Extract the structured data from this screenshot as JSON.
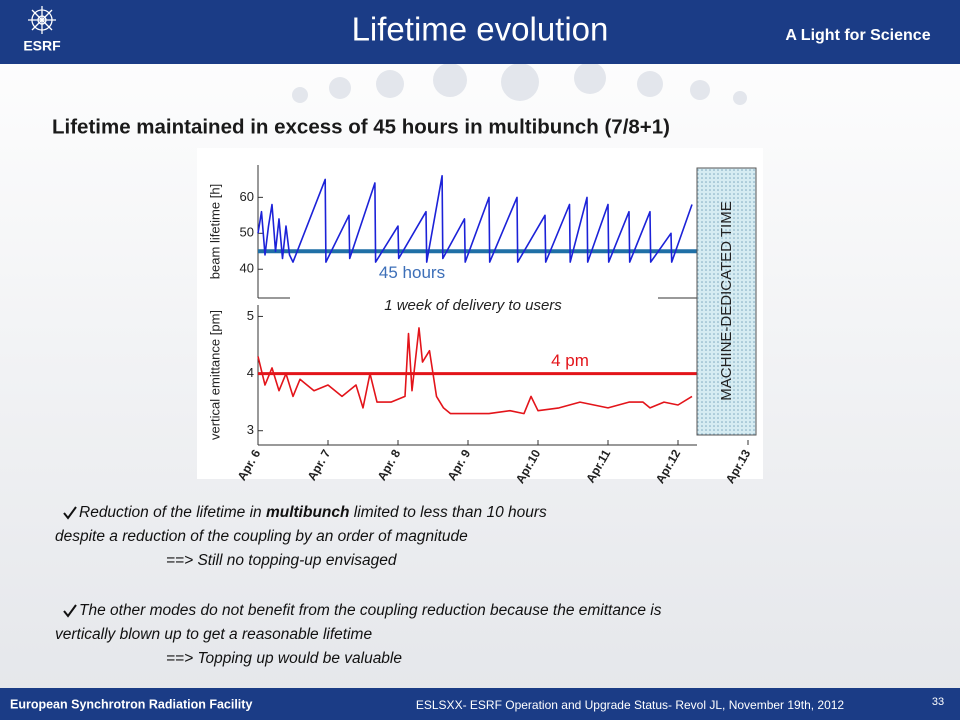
{
  "header": {
    "logo": "ESRF",
    "title": "Lifetime evolution",
    "tagline": "A Light for Science"
  },
  "subtitle": "Lifetime maintained in excess of 45 hours in multibunch (7/8+1)",
  "chart_annotations": {
    "delivery": "1 week of delivery to users",
    "machine": "MACHINE-DEDICATED TIME"
  },
  "chart_data": [
    {
      "type": "line",
      "ylabel": "beam lifetime [h]",
      "xlim": [
        6,
        13
      ],
      "ylim": [
        32,
        69
      ],
      "yticks": [
        40,
        50,
        60
      ],
      "series": [
        {
          "name": "beam lifetime",
          "color": "#1c22d8",
          "x": [
            6.0,
            6.05,
            6.1,
            6.15,
            6.2,
            6.25,
            6.3,
            6.35,
            6.4,
            6.45,
            6.5,
            6.96,
            6.97,
            7.3,
            7.31,
            7.67,
            7.68,
            8.0,
            8.01,
            8.4,
            8.41,
            8.63,
            8.64,
            8.95,
            8.96,
            9.3,
            9.31,
            9.7,
            9.71,
            10.1,
            10.11,
            10.45,
            10.46,
            10.7,
            10.71,
            11.0,
            11.01,
            11.3,
            11.31,
            11.6,
            11.61,
            11.9,
            11.91,
            12.2
          ],
          "values": [
            50,
            56,
            44,
            52,
            58,
            45,
            54,
            43,
            52,
            44,
            42,
            65,
            42,
            55,
            43,
            64,
            42,
            52,
            43,
            56,
            42,
            66,
            43,
            54,
            42,
            60,
            42,
            60,
            42,
            55,
            42,
            58,
            42,
            60,
            42,
            58,
            42,
            56,
            42,
            56,
            42,
            50,
            42,
            58
          ]
        }
      ],
      "reference_line": {
        "value": 45,
        "label": "45 hours",
        "color": "#1f6fa6",
        "label_color": "#3d6fb8"
      }
    },
    {
      "type": "line",
      "ylabel": "vertical emittance [pm]",
      "xlim": [
        6,
        13
      ],
      "ylim": [
        2.75,
        5.2
      ],
      "yticks": [
        3,
        4,
        5
      ],
      "xticks": [
        {
          "value": 6,
          "label": "Apr. 6"
        },
        {
          "value": 7,
          "label": "Apr. 7"
        },
        {
          "value": 8,
          "label": "Apr. 8"
        },
        {
          "value": 9,
          "label": "Apr. 9"
        },
        {
          "value": 10,
          "label": "Apr.10"
        },
        {
          "value": 11,
          "label": "Apr.11"
        },
        {
          "value": 12,
          "label": "Apr.12"
        },
        {
          "value": 13,
          "label": "Apr.13"
        }
      ],
      "series": [
        {
          "name": "vertical emittance",
          "color": "#e3141a",
          "x": [
            6.0,
            6.1,
            6.2,
            6.3,
            6.4,
            6.5,
            6.6,
            6.8,
            7.0,
            7.2,
            7.4,
            7.5,
            7.6,
            7.7,
            7.9,
            8.1,
            8.15,
            8.2,
            8.3,
            8.35,
            8.45,
            8.55,
            8.65,
            8.75,
            9.0,
            9.3,
            9.6,
            9.8,
            9.9,
            10.0,
            10.3,
            10.6,
            10.8,
            11.0,
            11.3,
            11.5,
            11.6,
            11.8,
            12.0,
            12.2
          ],
          "values": [
            4.3,
            3.8,
            4.1,
            3.7,
            4.0,
            3.6,
            3.9,
            3.7,
            3.8,
            3.6,
            3.8,
            3.4,
            4.0,
            3.5,
            3.5,
            3.6,
            4.7,
            3.7,
            4.8,
            4.2,
            4.4,
            3.6,
            3.4,
            3.3,
            3.3,
            3.3,
            3.35,
            3.3,
            3.6,
            3.35,
            3.4,
            3.5,
            3.45,
            3.4,
            3.5,
            3.5,
            3.4,
            3.5,
            3.45,
            3.6
          ]
        }
      ],
      "reference_line": {
        "value": 4,
        "label": "4 pm",
        "color": "#e3141a",
        "label_color": "#e3141a"
      }
    }
  ],
  "bullets": [
    {
      "lines": [
        [
          {
            "text": "Reduction of the lifetime in ",
            "bold": false
          },
          {
            "text": "multibunch",
            "bold": true
          },
          {
            "text": " limited to less than 10 hours",
            "bold": false
          }
        ],
        [
          {
            "text": "despite a reduction of the coupling by an order of magnitude",
            "bold": false
          }
        ],
        [
          {
            "text": "==> Still no topping-up envisaged",
            "bold": false
          }
        ]
      ]
    },
    {
      "lines": [
        [
          {
            "text": "The other modes do not benefit from the coupling reduction because the emittance is",
            "bold": false
          }
        ],
        [
          {
            "text": "vertically blown up to get a reasonable lifetime",
            "bold": false
          }
        ],
        [
          {
            "text": "==> Topping up would be valuable",
            "bold": false
          }
        ]
      ]
    }
  ],
  "footer": {
    "left": "European Synchrotron Radiation Facility",
    "center": "ESLSXX- ESRF Operation and Upgrade Status- Revol JL, November 19th, 2012",
    "page": "33"
  }
}
